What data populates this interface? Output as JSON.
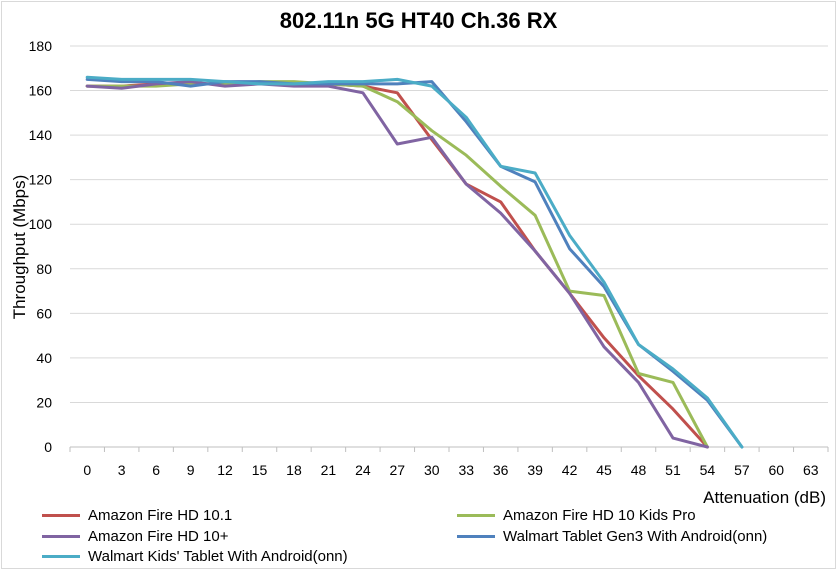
{
  "chart_data": {
    "type": "line",
    "title": "802.11n 5G HT40 Ch.36 RX",
    "xlabel": "Attenuation (dB)",
    "ylabel": "Throughput (Mbps)",
    "x": [
      0,
      3,
      6,
      9,
      12,
      15,
      18,
      21,
      24,
      27,
      30,
      33,
      36,
      39,
      42,
      45,
      48,
      51,
      54,
      57,
      60,
      63
    ],
    "ylim": [
      0,
      180
    ],
    "yticks": [
      0,
      20,
      40,
      60,
      80,
      100,
      120,
      140,
      160,
      180
    ],
    "grid": true,
    "legend_position": "bottom",
    "series": [
      {
        "name": "Amazon Fire HD 10.1",
        "color": "#c0504d",
        "values": [
          162,
          162,
          163,
          163,
          163,
          163,
          163,
          163,
          162,
          159,
          138,
          118,
          110,
          88,
          69,
          49,
          32,
          17,
          0,
          null,
          null,
          null
        ]
      },
      {
        "name": "Amazon Fire HD 10 Kids Pro",
        "color": "#9bbb59",
        "values": [
          162,
          162,
          162,
          163,
          163,
          164,
          164,
          163,
          162,
          155,
          142,
          131,
          117,
          104,
          70,
          68,
          33,
          29,
          0,
          null,
          null,
          null
        ]
      },
      {
        "name": "Amazon Fire HD 10+",
        "color": "#8064a2",
        "values": [
          162,
          161,
          163,
          164,
          162,
          163,
          162,
          162,
          159,
          136,
          139,
          118,
          105,
          88,
          69,
          45,
          29,
          4,
          0,
          null,
          null,
          null
        ]
      },
      {
        "name": "Walmart Tablet Gen3 With Android(onn)",
        "color": "#4f81bd",
        "values": [
          165,
          164,
          164,
          162,
          164,
          164,
          163,
          163,
          163,
          163,
          164,
          146,
          126,
          119,
          89,
          72,
          46,
          34,
          21,
          0,
          null,
          null
        ]
      },
      {
        "name": "Walmart Kids' Tablet With Android(onn)",
        "color": "#4bacc6",
        "values": [
          166,
          165,
          165,
          165,
          164,
          163,
          163,
          164,
          164,
          165,
          162,
          148,
          126,
          123,
          95,
          74,
          46,
          35,
          22,
          0,
          null,
          null
        ]
      }
    ]
  }
}
